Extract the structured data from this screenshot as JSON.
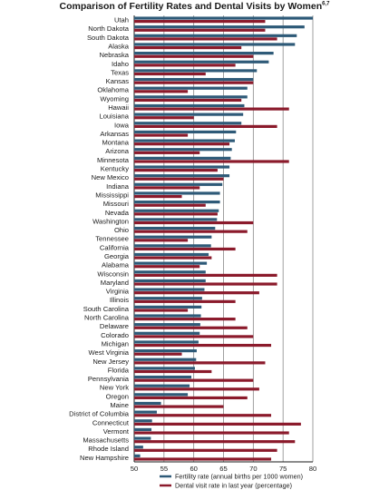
{
  "title": "Comparison of Fertility Rates and Dental Visits by Women",
  "title_superscript": "6,7",
  "colors": {
    "fertility": "#2e5a78",
    "dental": "#8b1a2b",
    "gridline": "#888888",
    "frame": "#1a1a1a"
  },
  "chart_data": {
    "type": "bar",
    "orientation": "horizontal",
    "title": "Comparison of Fertility Rates and Dental Visits by Women",
    "xlim": [
      50,
      80
    ],
    "xticks": [
      50,
      55,
      60,
      65,
      70,
      75,
      80
    ],
    "grid": true,
    "legend_position": "bottom",
    "categories": [
      "Utah",
      "North Dakota",
      "South Dakota",
      "Alaska",
      "Nebraska",
      "Idaho",
      "Texas",
      "Kansas",
      "Oklahoma",
      "Wyoming",
      "Hawaii",
      "Louisiana",
      "Iowa",
      "Arkansas",
      "Montana",
      "Arizona",
      "Minnesota",
      "Kentucky",
      "New Mexico",
      "Indiana",
      "Mississippi",
      "Missouri",
      "Nevada",
      "Washington",
      "Ohio",
      "Tennessee",
      "California",
      "Georgia",
      "Alabama",
      "Wisconsin",
      "Maryland",
      "Virginia",
      "Illinois",
      "South Carolina",
      "North Carolina",
      "Delaware",
      "Colorado",
      "Michigan",
      "West Virginia",
      "New Jersey",
      "Florida",
      "Pennsylvania",
      "New York",
      "Oregon",
      "Maine",
      "District of Columbia",
      "Connecticut",
      "Vermont",
      "Massachusetts",
      "Rhode Island",
      "New Hampshire"
    ],
    "series": [
      {
        "name": "Fertility rate (annual births per 1000 women)",
        "values": [
          80.0,
          78.6,
          77.3,
          77.0,
          73.4,
          72.6,
          70.6,
          70.0,
          69.0,
          69.0,
          68.5,
          68.3,
          68.0,
          67.1,
          66.9,
          66.4,
          66.2,
          66.0,
          66.0,
          64.8,
          64.4,
          64.4,
          64.2,
          63.9,
          63.6,
          63.0,
          62.9,
          62.5,
          62.2,
          62.0,
          62.0,
          61.8,
          61.4,
          61.3,
          61.2,
          61.1,
          61.0,
          60.8,
          60.5,
          60.4,
          60.2,
          59.6,
          59.3,
          59.0,
          54.5,
          53.8,
          53.0,
          52.9,
          52.8,
          51.5,
          51.0
        ]
      },
      {
        "name": "Dental visit rate in last year (percentage)",
        "values": [
          72.0,
          72.0,
          74.0,
          68.0,
          70.0,
          67.0,
          62.0,
          70.0,
          59.0,
          68.0,
          76.0,
          60.0,
          74.0,
          59.0,
          66.0,
          61.0,
          76.0,
          64.0,
          65.0,
          61.0,
          58.0,
          62.0,
          64.0,
          70.0,
          69.0,
          59.0,
          67.0,
          63.0,
          61.0,
          74.0,
          74.0,
          71.0,
          67.0,
          59.0,
          67.0,
          69.0,
          70.0,
          73.0,
          58.0,
          72.0,
          63.0,
          70.0,
          71.0,
          69.0,
          65.0,
          73.0,
          78.0,
          76.0,
          77.0,
          74.0,
          73.0
        ]
      }
    ]
  }
}
